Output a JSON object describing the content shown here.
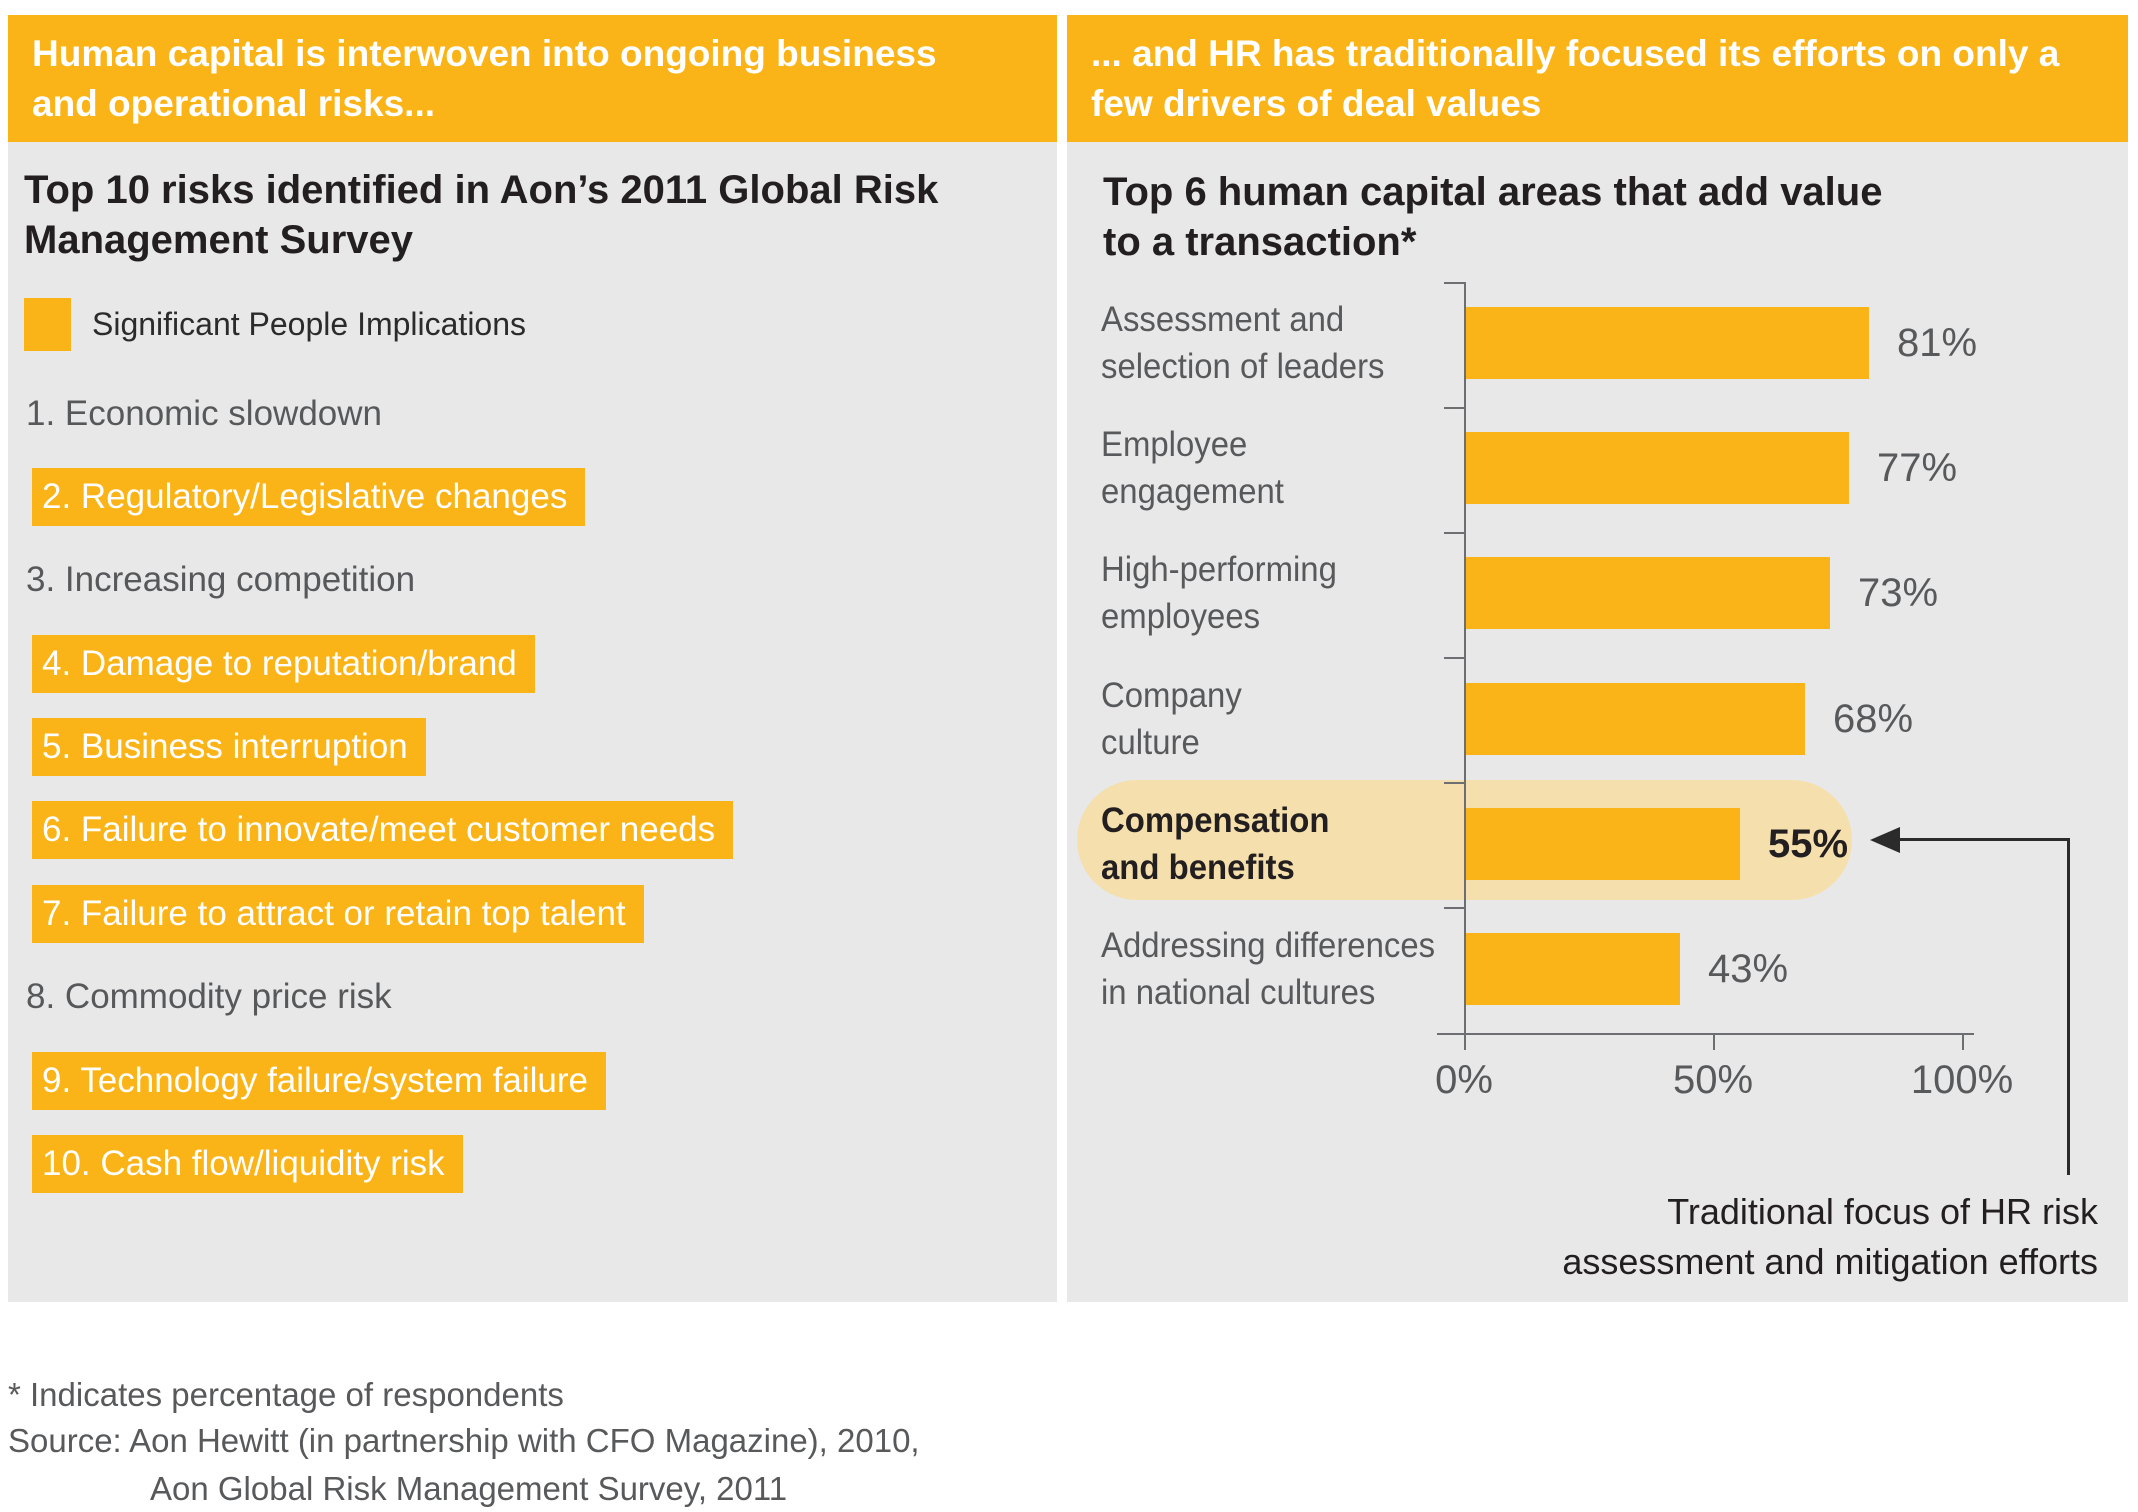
{
  "left_panel": {
    "header_line1": "Human capital is interwoven into ongoing business",
    "header_line2": "and operational risks...",
    "subtitle_line1": "Top 10 risks identified in Aon’s 2011 Global Risk",
    "subtitle_line2": "Management Survey",
    "legend_label": "Significant People Implications",
    "risks": [
      {
        "text": "1. Economic slowdown",
        "highlighted": false
      },
      {
        "text": "2. Regulatory/Legislative changes",
        "highlighted": true
      },
      {
        "text": "3. Increasing competition",
        "highlighted": false
      },
      {
        "text": "4. Damage to reputation/brand",
        "highlighted": true
      },
      {
        "text": "5. Business interruption",
        "highlighted": true
      },
      {
        "text": "6. Failure to innovate/meet customer needs",
        "highlighted": true
      },
      {
        "text": "7. Failure to attract or retain top talent",
        "highlighted": true
      },
      {
        "text": "8. Commodity price risk",
        "highlighted": false
      },
      {
        "text": "9. Technology failure/system failure",
        "highlighted": true
      },
      {
        "text": "10. Cash flow/liquidity risk",
        "highlighted": true
      }
    ]
  },
  "right_panel": {
    "header_line1": "... and HR has traditionally focused its efforts on only a",
    "header_line2": "few drivers of deal values",
    "subtitle_line1": "Top 6 human capital areas that add value",
    "subtitle_line2": "to a transaction*",
    "annotation_line1": "Traditional focus of HR risk",
    "annotation_line2": "assessment and mitigation efforts"
  },
  "chart_data": {
    "type": "bar",
    "orientation": "horizontal",
    "title": "Top 6 human capital areas that add value to a transaction*",
    "categories": [
      "Assessment and selection of leaders",
      "Employee engagement",
      "High-performing employees",
      "Company culture",
      "Compensation and benefits",
      "Addressing differences in national cultures"
    ],
    "values": [
      81,
      77,
      73,
      68,
      55,
      43
    ],
    "xlabel": "",
    "ylabel": "",
    "xlim": [
      0,
      100
    ],
    "x_tick_labels": [
      "0%",
      "50%",
      "100%"
    ],
    "highlighted_category": "Compensation and benefits",
    "legend_position": "none",
    "grid": false,
    "rows": [
      {
        "label_line1": "Assessment and",
        "label_line2": "selection of leaders",
        "value_label": "81%"
      },
      {
        "label_line1": "Employee",
        "label_line2": "engagement",
        "value_label": "77%"
      },
      {
        "label_line1": "High-performing",
        "label_line2": "employees",
        "value_label": "73%"
      },
      {
        "label_line1": "Company",
        "label_line2": "culture",
        "value_label": "68%"
      },
      {
        "label_line1": "Compensation",
        "label_line2": "and benefits",
        "value_label": "55%"
      },
      {
        "label_line1": "Addressing differences",
        "label_line2": "in national cultures",
        "value_label": "43%"
      }
    ]
  },
  "footer": {
    "note": "* Indicates percentage of respondents",
    "source_line1": "Source: Aon Hewitt (in partnership with CFO Magazine), 2010,",
    "source_line2": "Aon Global Risk Management Survey, 2011"
  },
  "colors": {
    "accent_yellow": "#fbb417",
    "panel_background": "#e8e8e9",
    "highlight_pill": "#f5e0ad",
    "text_dark": "#231f20",
    "text_gray": "#58595b",
    "axis_gray": "#6d6e71",
    "header_text": "#ffffff"
  }
}
